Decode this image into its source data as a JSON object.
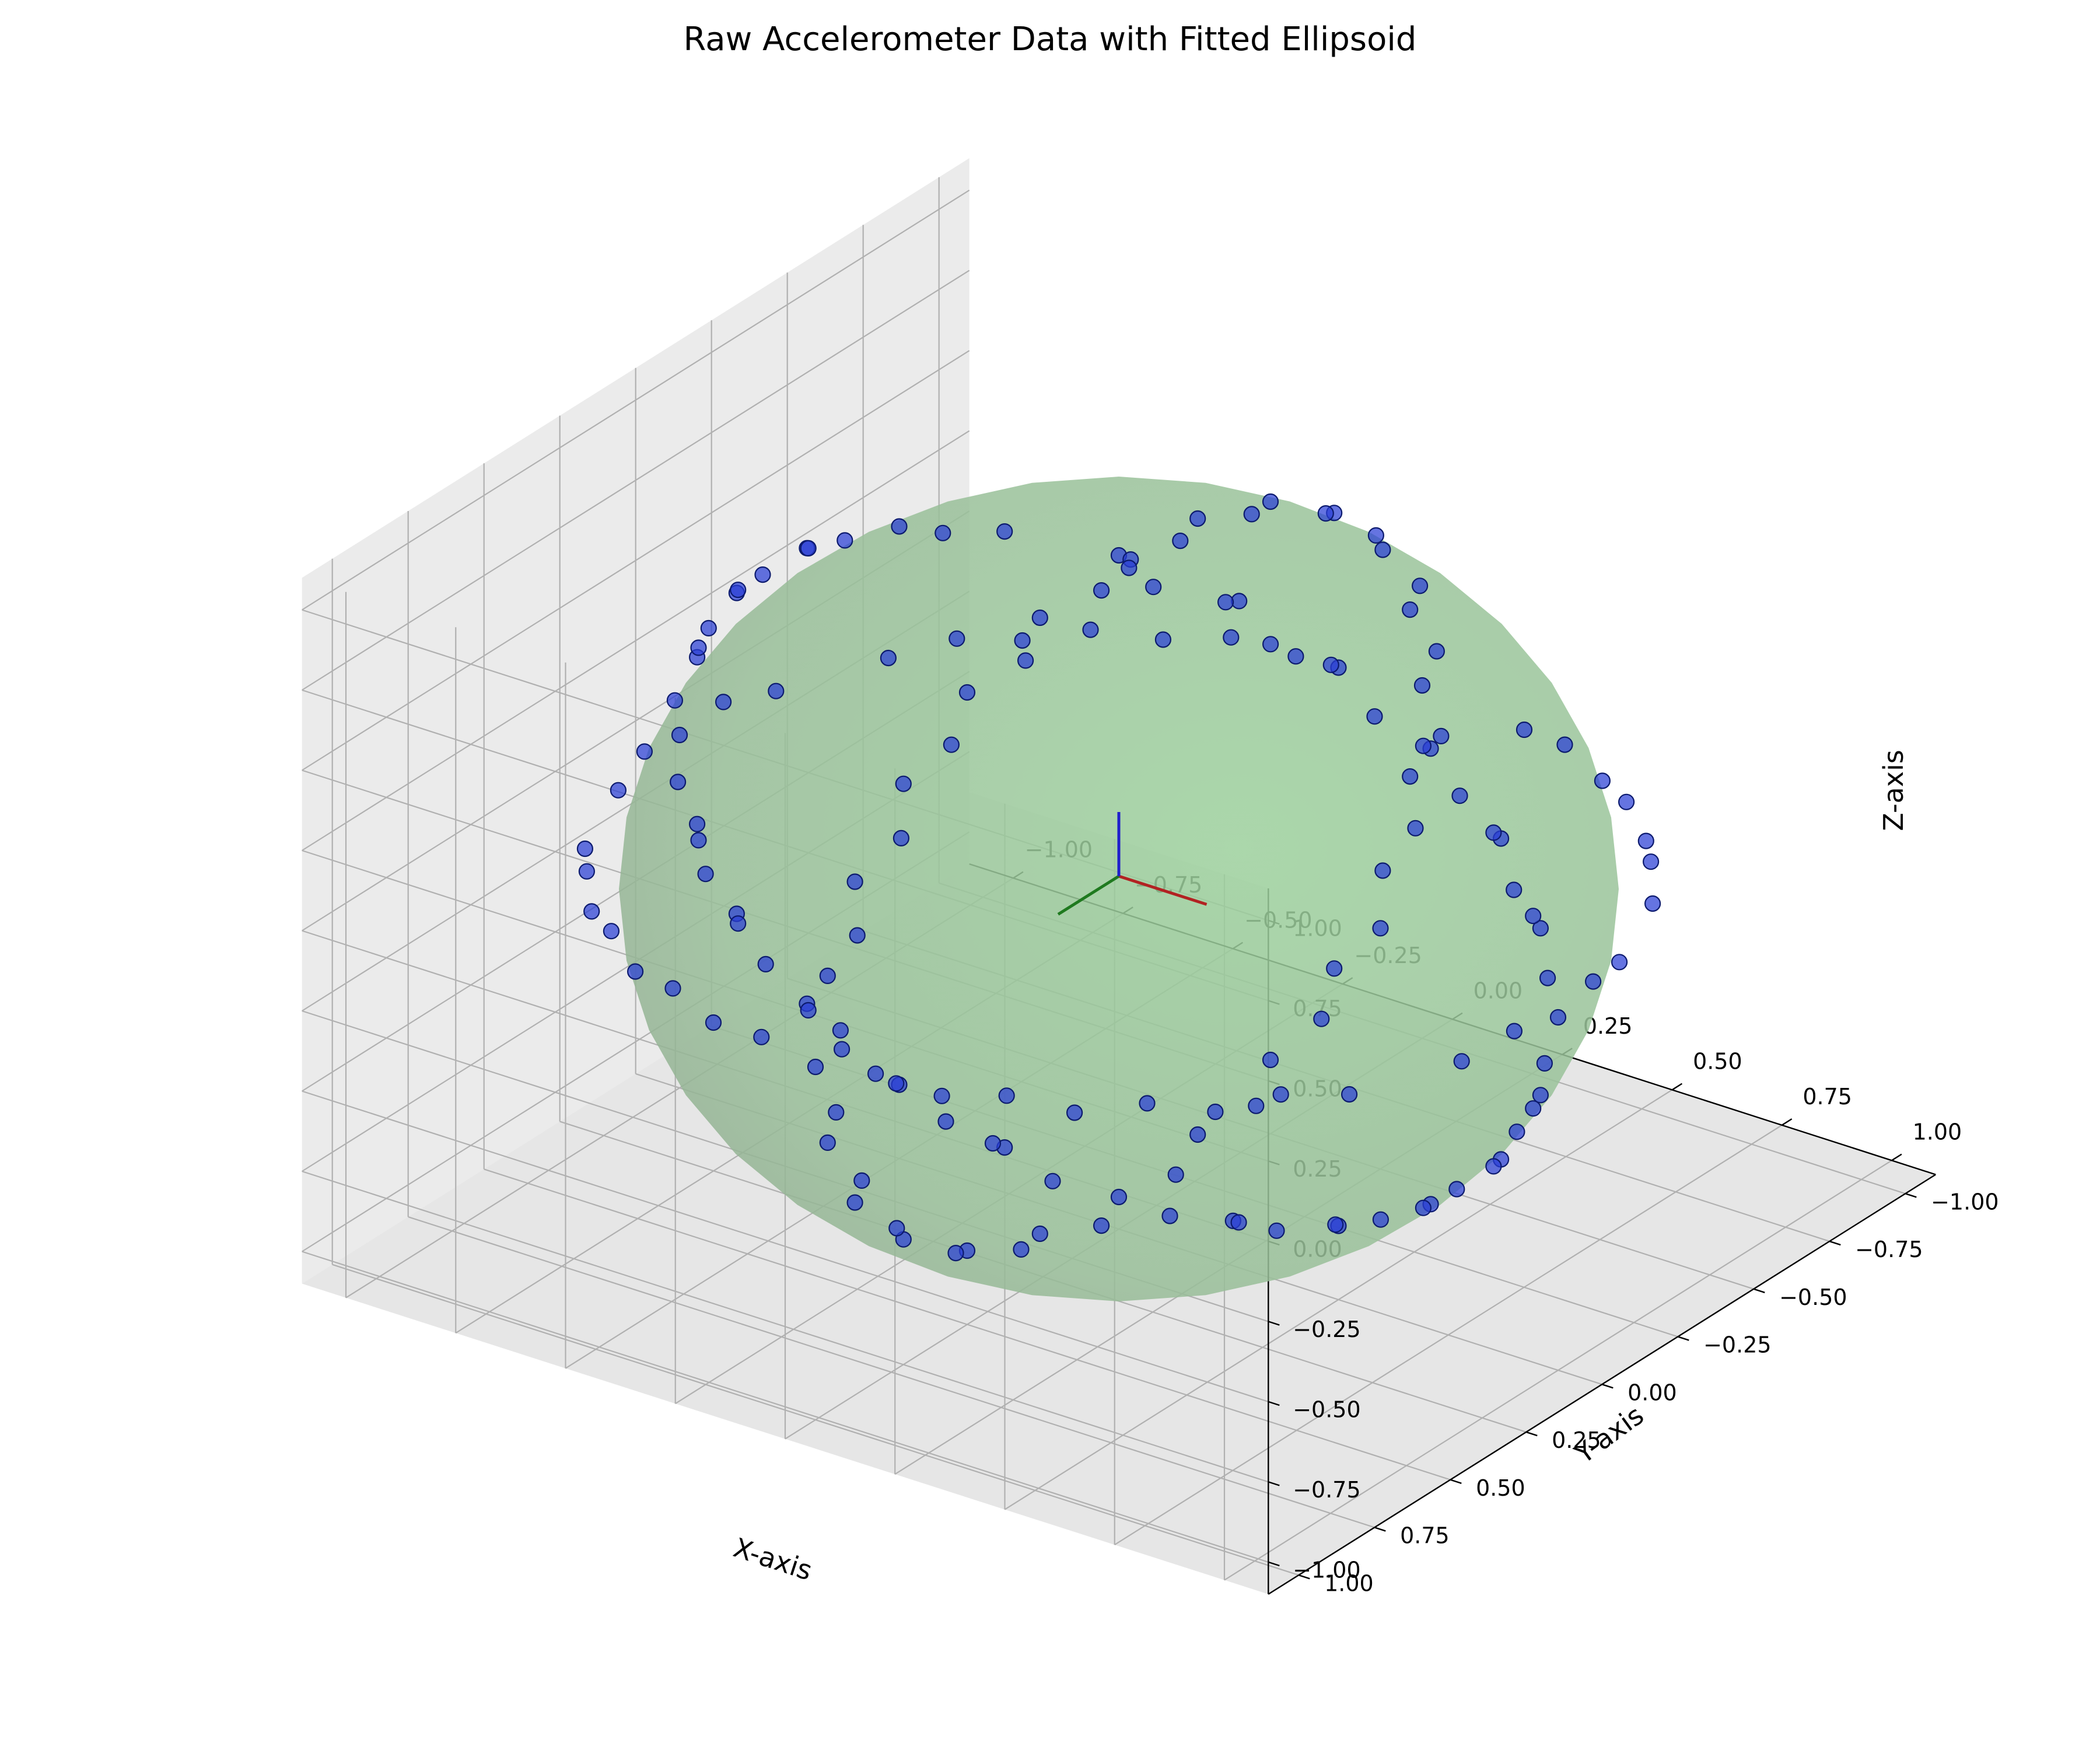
{
  "chart_data": {
    "type": "scatter",
    "projection": "3d",
    "title": "Raw Accelerometer Data with Fitted Ellipsoid",
    "xlabel": "X-axis",
    "ylabel": "Y-axis",
    "zlabel": "Z-axis",
    "xlim": [
      -1.1,
      1.1
    ],
    "ylim": [
      -1.1,
      1.1
    ],
    "zlim": [
      -1.1,
      1.1
    ],
    "xticks": [
      "−1.00",
      "−0.75",
      "−0.50",
      "−0.25",
      "0.00",
      "0.25",
      "0.50",
      "0.75",
      "1.00"
    ],
    "yticks": [
      "−1.00",
      "−0.75",
      "−0.50",
      "−0.25",
      "0.00",
      "0.25",
      "0.50",
      "0.75",
      "1.00"
    ],
    "zticks": [
      "−1.00",
      "−0.75",
      "−0.50",
      "−0.25",
      "0.00",
      "0.25",
      "0.50",
      "0.75",
      "1.00"
    ],
    "grid": true,
    "ellipsoid": {
      "center": [
        0,
        0,
        0
      ],
      "radii": [
        1,
        1,
        1
      ],
      "color": "#90c890",
      "opacity": 0.85
    },
    "axis_arrows": [
      {
        "direction": [
          1,
          0,
          0
        ],
        "color": "#b22222"
      },
      {
        "direction": [
          0,
          1,
          0
        ],
        "color": "#1f7a1f"
      },
      {
        "direction": [
          0,
          0,
          1
        ],
        "color": "#1f1fcc"
      }
    ],
    "point_color": "#2a3fd6",
    "series": [
      {
        "points": [
          [
            0.0,
            0.0,
            1.0
          ],
          [
            0.26,
            -0.02,
            0.96
          ],
          [
            0.5,
            0.0,
            0.87
          ],
          [
            0.71,
            0.0,
            0.71
          ],
          [
            0.87,
            0.0,
            0.5
          ],
          [
            0.96,
            0.0,
            0.26
          ],
          [
            1.0,
            0.0,
            0.0
          ],
          [
            0.96,
            0.0,
            -0.26
          ],
          [
            0.87,
            0.0,
            -0.5
          ],
          [
            0.71,
            0.0,
            -0.71
          ],
          [
            0.5,
            0.0,
            -0.87
          ],
          [
            0.26,
            0.0,
            -0.96
          ],
          [
            0.0,
            0.0,
            -1.0
          ],
          [
            -0.26,
            0.0,
            -0.96
          ],
          [
            -0.5,
            0.0,
            -0.87
          ],
          [
            -0.71,
            0.0,
            -0.71
          ],
          [
            -0.87,
            0.0,
            -0.5
          ],
          [
            -0.96,
            0.0,
            -0.26
          ],
          [
            -1.0,
            0.0,
            0.0
          ],
          [
            -0.96,
            0.0,
            0.26
          ],
          [
            -0.87,
            0.0,
            0.5
          ],
          [
            -0.71,
            0.0,
            0.71
          ],
          [
            -0.5,
            0.0,
            0.87
          ],
          [
            -0.26,
            0.0,
            0.96
          ],
          [
            0.0,
            0.26,
            0.96
          ],
          [
            0.0,
            0.5,
            0.87
          ],
          [
            0.0,
            0.71,
            0.71
          ],
          [
            0.0,
            0.87,
            0.5
          ],
          [
            0.0,
            0.96,
            0.26
          ],
          [
            0.0,
            1.0,
            0.0
          ],
          [
            0.0,
            0.96,
            -0.26
          ],
          [
            0.0,
            0.87,
            -0.5
          ],
          [
            0.0,
            0.71,
            -0.71
          ],
          [
            0.0,
            0.5,
            -0.87
          ],
          [
            0.0,
            0.26,
            -0.96
          ],
          [
            0.0,
            -0.26,
            -0.96
          ],
          [
            0.0,
            -0.5,
            -0.87
          ],
          [
            0.0,
            -0.71,
            -0.71
          ],
          [
            0.0,
            -0.87,
            -0.5
          ],
          [
            0.0,
            -0.96,
            -0.26
          ],
          [
            0.0,
            -1.0,
            0.0
          ],
          [
            0.0,
            -0.96,
            0.26
          ],
          [
            0.0,
            -0.87,
            0.5
          ],
          [
            0.0,
            -0.71,
            0.71
          ],
          [
            0.0,
            -0.5,
            0.87
          ],
          [
            0.0,
            -0.26,
            0.96
          ],
          [
            0.71,
            0.71,
            0.0
          ],
          [
            0.5,
            0.87,
            0.0
          ],
          [
            0.26,
            0.96,
            0.0
          ],
          [
            -0.26,
            0.96,
            0.0
          ],
          [
            -0.5,
            0.87,
            0.0
          ],
          [
            -0.71,
            0.71,
            0.0
          ],
          [
            -0.87,
            0.5,
            0.0
          ],
          [
            -0.96,
            0.26,
            0.0
          ],
          [
            -0.96,
            -0.26,
            0.0
          ],
          [
            -0.87,
            -0.5,
            0.0
          ],
          [
            -0.71,
            -0.71,
            0.0
          ],
          [
            -0.5,
            -0.87,
            0.0
          ],
          [
            -0.26,
            -0.96,
            0.0
          ],
          [
            0.26,
            -0.96,
            0.0
          ],
          [
            0.5,
            -0.87,
            0.0
          ],
          [
            0.71,
            -0.71,
            0.0
          ],
          [
            0.87,
            -0.5,
            0.0
          ],
          [
            0.96,
            -0.26,
            0.0
          ],
          [
            0.96,
            0.26,
            0.0
          ],
          [
            0.87,
            0.5,
            0.0
          ],
          [
            0.12,
            0.06,
            0.99
          ],
          [
            0.38,
            0.05,
            0.92
          ],
          [
            0.61,
            0.04,
            0.79
          ],
          [
            0.79,
            0.02,
            0.61
          ],
          [
            0.92,
            0.03,
            0.38
          ],
          [
            0.99,
            0.02,
            0.13
          ],
          [
            0.99,
            0.03,
            -0.13
          ],
          [
            0.92,
            0.02,
            -0.38
          ],
          [
            0.79,
            0.03,
            -0.61
          ],
          [
            0.61,
            0.02,
            -0.79
          ],
          [
            0.38,
            0.03,
            -0.92
          ],
          [
            0.13,
            0.02,
            -0.99
          ],
          [
            -0.13,
            0.03,
            -0.99
          ],
          [
            -0.38,
            0.02,
            -0.92
          ],
          [
            -0.61,
            0.03,
            -0.79
          ],
          [
            -0.79,
            0.02,
            -0.61
          ],
          [
            -0.92,
            0.03,
            -0.38
          ],
          [
            -0.99,
            0.02,
            -0.13
          ],
          [
            -0.99,
            0.03,
            0.13
          ],
          [
            -0.92,
            0.02,
            0.38
          ],
          [
            -0.79,
            0.03,
            0.61
          ],
          [
            -0.61,
            0.02,
            0.79
          ],
          [
            -0.38,
            0.03,
            0.92
          ],
          [
            0.05,
            0.13,
            0.99
          ],
          [
            0.05,
            0.38,
            0.92
          ],
          [
            0.04,
            0.61,
            0.79
          ],
          [
            0.05,
            0.79,
            0.61
          ],
          [
            0.04,
            0.92,
            0.38
          ],
          [
            0.05,
            0.99,
            0.13
          ],
          [
            0.04,
            0.99,
            -0.13
          ],
          [
            0.05,
            0.92,
            -0.38
          ],
          [
            0.04,
            0.79,
            -0.61
          ],
          [
            0.05,
            0.61,
            -0.79
          ],
          [
            0.04,
            0.38,
            -0.92
          ],
          [
            0.05,
            0.13,
            -0.99
          ],
          [
            0.04,
            -0.13,
            -0.99
          ],
          [
            0.05,
            -0.38,
            -0.92
          ],
          [
            0.04,
            -0.61,
            -0.79
          ],
          [
            0.05,
            -0.79,
            -0.61
          ],
          [
            0.04,
            -0.92,
            -0.38
          ],
          [
            0.05,
            -0.99,
            -0.13
          ],
          [
            0.04,
            -0.99,
            0.13
          ],
          [
            0.05,
            -0.92,
            0.38
          ],
          [
            0.04,
            -0.79,
            0.61
          ],
          [
            0.05,
            -0.61,
            0.79
          ],
          [
            0.04,
            -0.38,
            0.92
          ],
          [
            0.05,
            -0.13,
            0.99
          ],
          [
            0.61,
            0.79,
            0.03
          ],
          [
            0.38,
            0.92,
            0.03
          ],
          [
            0.13,
            0.99,
            0.03
          ],
          [
            -0.13,
            0.99,
            0.03
          ],
          [
            -0.38,
            0.92,
            0.03
          ],
          [
            -0.61,
            0.79,
            0.03
          ],
          [
            -0.79,
            0.61,
            0.03
          ],
          [
            -0.99,
            0.13,
            0.03
          ],
          [
            -0.99,
            -0.13,
            0.03
          ],
          [
            -0.79,
            -0.61,
            0.03
          ],
          [
            -0.61,
            -0.79,
            0.03
          ],
          [
            -0.38,
            -0.92,
            0.03
          ],
          [
            0.38,
            -0.92,
            0.03
          ],
          [
            0.61,
            -0.79,
            0.03
          ],
          [
            0.79,
            -0.61,
            0.03
          ],
          [
            0.99,
            -0.13,
            0.03
          ],
          [
            0.99,
            0.13,
            0.03
          ],
          [
            0.79,
            0.61,
            0.03
          ],
          [
            0.02,
            -0.01,
            0.99
          ],
          [
            0.03,
            0.01,
            0.98
          ],
          [
            0.25,
            0.01,
            0.97
          ],
          [
            0.49,
            0.01,
            0.88
          ],
          [
            0.7,
            0.01,
            0.72
          ],
          [
            0.86,
            0.01,
            0.52
          ],
          [
            0.95,
            0.01,
            0.3
          ],
          [
            0.95,
            0.01,
            -0.3
          ],
          [
            0.86,
            0.01,
            -0.52
          ],
          [
            0.7,
            0.01,
            -0.72
          ],
          [
            0.5,
            0.01,
            -0.86
          ],
          [
            0.28,
            0.01,
            -0.95
          ],
          [
            -0.28,
            0.01,
            -0.95
          ],
          [
            -0.5,
            0.01,
            -0.86
          ],
          [
            -0.7,
            0.01,
            -0.72
          ],
          [
            -0.86,
            0.01,
            -0.52
          ],
          [
            -0.95,
            0.01,
            -0.3
          ],
          [
            -0.95,
            0.01,
            0.3
          ],
          [
            -0.86,
            0.01,
            0.52
          ],
          [
            -0.7,
            0.01,
            0.72
          ]
        ]
      }
    ]
  }
}
